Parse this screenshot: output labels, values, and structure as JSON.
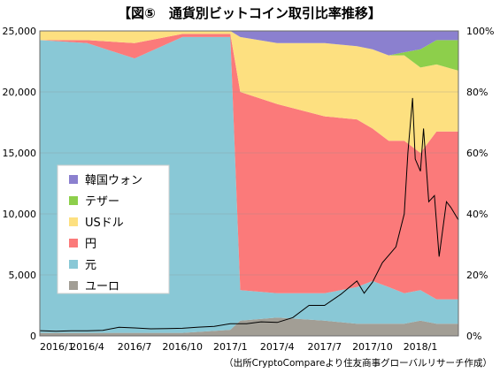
{
  "chart_data": {
    "type": "area",
    "title": "【図⑤　通貨別ビットコイン取引比率推移】",
    "source_note": "（出所CryptoCompareより住友商事グローバルリサーチ作成）",
    "x_ticks": [
      "2016/1",
      "2016/4",
      "2016/7",
      "2016/10",
      "2017/1",
      "2017/4",
      "2017/7",
      "2017/10",
      "2018/1"
    ],
    "x_range": [
      "2016-01-01",
      "2018-03-15"
    ],
    "left_axis": {
      "ticks": [
        "0",
        "5,000",
        "10,000",
        "15,000",
        "20,000",
        "25,000"
      ],
      "ylim": [
        0,
        25000
      ],
      "unit": "price"
    },
    "right_axis": {
      "ticks": [
        "0%",
        "20%",
        "40%",
        "60%",
        "80%",
        "100%"
      ],
      "ylim": [
        0,
        100
      ],
      "unit": "%"
    },
    "grid": true,
    "legend": {
      "placement": "left-middle",
      "entries": [
        {
          "label": "韓国ウォン",
          "color": "#8b80cf"
        },
        {
          "label": "テザー",
          "color": "#8dcf4b"
        },
        {
          "label": "USドル",
          "color": "#fde080"
        },
        {
          "label": "円",
          "color": "#fb7a7a"
        },
        {
          "label": "元",
          "color": "#89c8d6"
        },
        {
          "label": "ユーロ",
          "color": "#a29e95"
        }
      ]
    },
    "stacked_share_series": {
      "dates": [
        "2016-01-01",
        "2016-04-01",
        "2016-07-01",
        "2016-10-01",
        "2017-01-01",
        "2017-01-20",
        "2017-04-01",
        "2017-07-01",
        "2017-09-01",
        "2017-10-01",
        "2017-11-01",
        "2017-12-01",
        "2018-01-01",
        "2018-02-01",
        "2018-03-15"
      ],
      "series": [
        {
          "name": "ユーロ",
          "values": [
            1,
            1,
            1,
            1,
            2,
            5,
            6,
            5,
            4,
            4,
            4,
            4,
            5,
            4,
            4
          ]
        },
        {
          "name": "元",
          "values": [
            96,
            95,
            90,
            97,
            96,
            10,
            8,
            9,
            12,
            14,
            12,
            10,
            10,
            8,
            8
          ]
        },
        {
          "name": "円",
          "values": [
            0,
            1,
            5,
            1,
            1,
            65,
            62,
            58,
            55,
            50,
            48,
            50,
            45,
            55,
            55
          ]
        },
        {
          "name": "USドル",
          "values": [
            3,
            3,
            4,
            1,
            1,
            18,
            20,
            24,
            24,
            26,
            28,
            28,
            28,
            22,
            20
          ]
        },
        {
          "name": "テザー",
          "values": [
            0,
            0,
            0,
            0,
            0,
            0,
            0,
            0,
            0,
            0,
            0,
            1,
            6,
            8,
            10
          ]
        },
        {
          "name": "韓国ウォン",
          "values": [
            0,
            0,
            0,
            0,
            0,
            2,
            4,
            4,
            5,
            6,
            8,
            7,
            6,
            3,
            3
          ]
        }
      ]
    },
    "price_line": {
      "name": "BTC price",
      "axis": "left",
      "points": [
        [
          "2016-01-01",
          430
        ],
        [
          "2016-02-01",
          380
        ],
        [
          "2016-03-01",
          420
        ],
        [
          "2016-04-01",
          420
        ],
        [
          "2016-05-01",
          450
        ],
        [
          "2016-06-01",
          700
        ],
        [
          "2016-07-01",
          650
        ],
        [
          "2016-08-01",
          580
        ],
        [
          "2016-09-01",
          600
        ],
        [
          "2016-10-01",
          620
        ],
        [
          "2016-11-01",
          720
        ],
        [
          "2016-12-01",
          780
        ],
        [
          "2017-01-01",
          1000
        ],
        [
          "2017-02-01",
          1000
        ],
        [
          "2017-03-01",
          1150
        ],
        [
          "2017-04-01",
          1100
        ],
        [
          "2017-05-01",
          1500
        ],
        [
          "2017-06-01",
          2500
        ],
        [
          "2017-07-01",
          2500
        ],
        [
          "2017-08-01",
          3400
        ],
        [
          "2017-09-01",
          4500
        ],
        [
          "2017-09-15",
          3500
        ],
        [
          "2017-10-01",
          4400
        ],
        [
          "2017-10-20",
          6000
        ],
        [
          "2017-11-01",
          6600
        ],
        [
          "2017-11-15",
          7300
        ],
        [
          "2017-12-01",
          10000
        ],
        [
          "2017-12-08",
          15000
        ],
        [
          "2017-12-17",
          19500
        ],
        [
          "2017-12-22",
          14500
        ],
        [
          "2018-01-01",
          13500
        ],
        [
          "2018-01-07",
          17000
        ],
        [
          "2018-01-17",
          11000
        ],
        [
          "2018-01-28",
          11500
        ],
        [
          "2018-02-06",
          6500
        ],
        [
          "2018-02-20",
          11000
        ],
        [
          "2018-03-01",
          10500
        ],
        [
          "2018-03-15",
          9500
        ]
      ]
    }
  }
}
